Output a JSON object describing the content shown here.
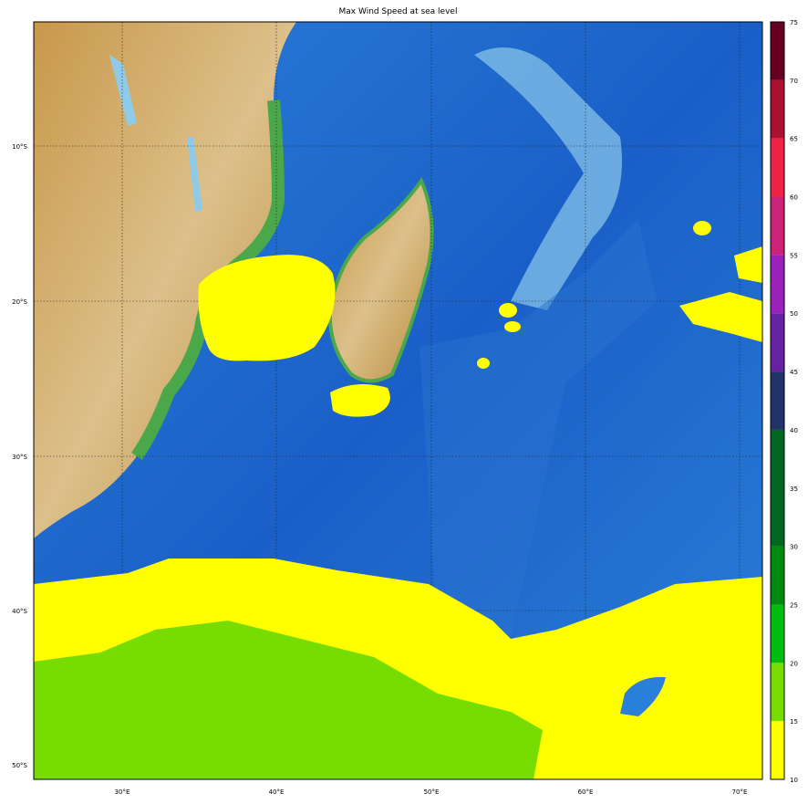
{
  "title": "Max Wind Speed at sea level",
  "map": {
    "lon_labels": [
      "30°E",
      "40°E",
      "50°E",
      "60°E",
      "70°E"
    ],
    "lat_labels": [
      "10°S",
      "20°S",
      "30°S",
      "40°S",
      "50°S"
    ],
    "extent": {
      "lon": [
        24.3,
        71.5
      ],
      "lat": [
        -2.0,
        -50.9
      ]
    },
    "graticule": "dotted",
    "colors": {
      "ocean_deep": "#1a5fc8",
      "ocean_mid": "#2f86db",
      "ocean_shallow": "#8fcbe8",
      "land_low": "#5db34a",
      "land_mid": "#d9b97a",
      "land_high": "#b98a3a"
    }
  },
  "colorbar": {
    "ticks": [
      "10",
      "15",
      "20",
      "25",
      "30",
      "35",
      "40",
      "45",
      "50",
      "55",
      "60",
      "65",
      "70",
      "75"
    ],
    "bins": [
      {
        "from": 10,
        "to": 15,
        "color": "#ffff00"
      },
      {
        "from": 15,
        "to": 20,
        "color": "#77dd00"
      },
      {
        "from": 20,
        "to": 25,
        "color": "#00bb11"
      },
      {
        "from": 25,
        "to": 30,
        "color": "#008811"
      },
      {
        "from": 30,
        "to": 40,
        "color": "#006622"
      },
      {
        "from": 40,
        "to": 45,
        "color": "#22336a"
      },
      {
        "from": 45,
        "to": 50,
        "color": "#6622a0"
      },
      {
        "from": 50,
        "to": 55,
        "color": "#9922bb"
      },
      {
        "from": 55,
        "to": 60,
        "color": "#cc2277"
      },
      {
        "from": 60,
        "to": 65,
        "color": "#ee2244"
      },
      {
        "from": 65,
        "to": 70,
        "color": "#aa1133"
      },
      {
        "from": 70,
        "to": 75,
        "color": "#660022"
      }
    ]
  }
}
